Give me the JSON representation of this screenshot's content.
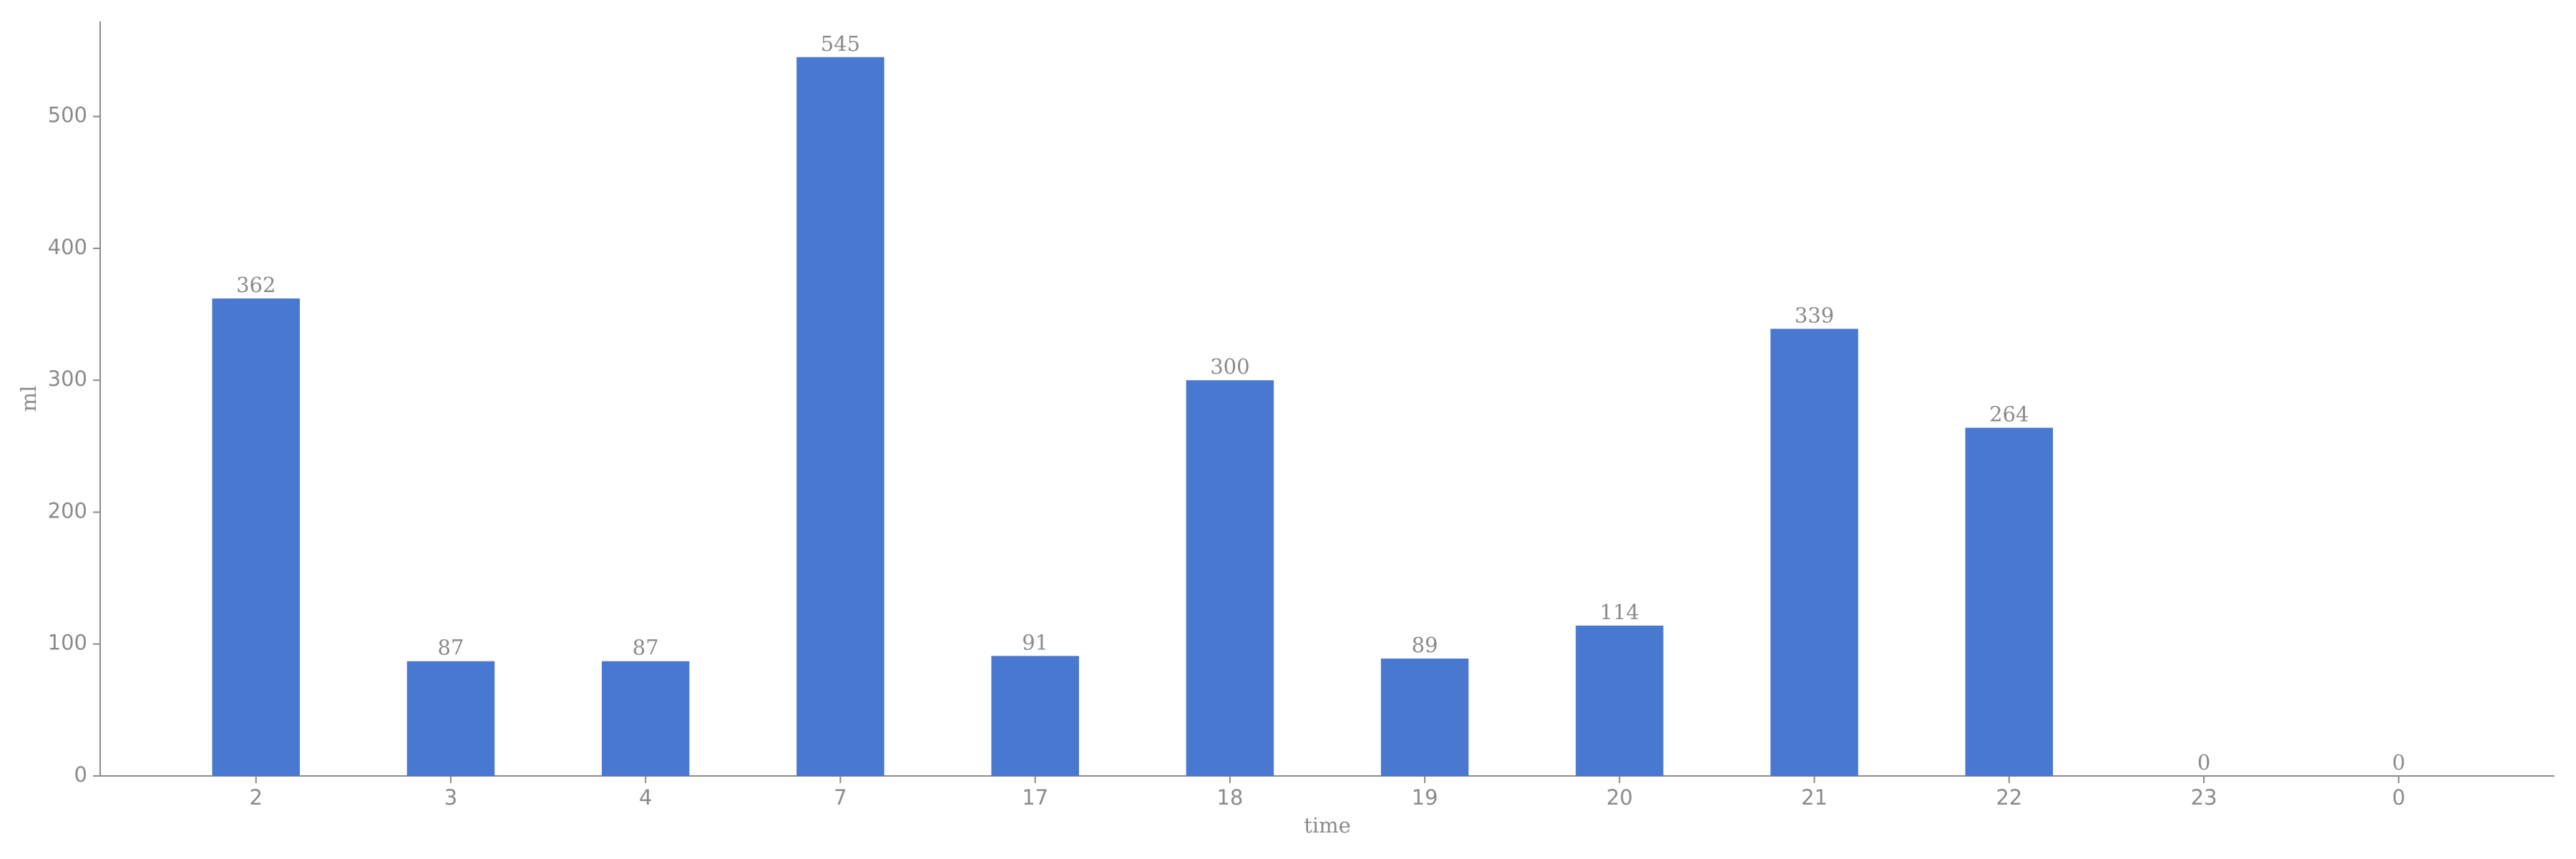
{
  "chart_data": {
    "type": "bar",
    "x_label": "time",
    "y_label": "ml",
    "categories": [
      "2",
      "3",
      "4",
      "7",
      "17",
      "18",
      "19",
      "20",
      "21",
      "22",
      "23",
      "0"
    ],
    "values": [
      362,
      87,
      87,
      545,
      91,
      300,
      89,
      114,
      339,
      264,
      0,
      0
    ],
    "color": "#4878d0",
    "ylim": [
      0,
      572
    ],
    "yticks": [
      0,
      100,
      200,
      300,
      400,
      500
    ],
    "grid": false
  }
}
